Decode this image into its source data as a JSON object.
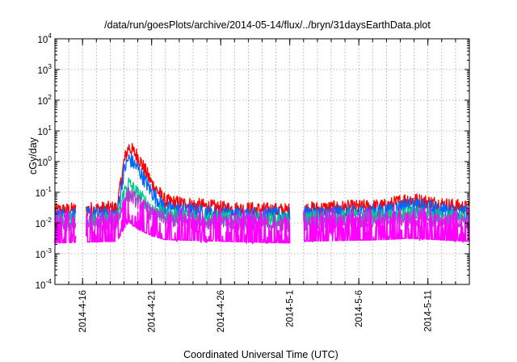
{
  "chart_data": {
    "type": "line",
    "title": "/data/run/goesPlots/archive/2014-05-14/flux/../bryn/31daysEarthData.plot",
    "xlabel": "Coordinated Universal Time (UTC)",
    "ylabel": "cGy/day",
    "yscale": "log",
    "ylim": [
      0.0001,
      10000
    ],
    "y_ticks": [
      {
        "value": 0.0001,
        "base": "10",
        "exp": "-4"
      },
      {
        "value": 0.001,
        "base": "10",
        "exp": "-3"
      },
      {
        "value": 0.01,
        "base": "10",
        "exp": "-2"
      },
      {
        "value": 0.1,
        "base": "10",
        "exp": "-1"
      },
      {
        "value": 1,
        "base": "10",
        "exp": "0"
      },
      {
        "value": 10,
        "base": "10",
        "exp": "1"
      },
      {
        "value": 100,
        "base": "10",
        "exp": "2"
      },
      {
        "value": 1000,
        "base": "10",
        "exp": "3"
      },
      {
        "value": 10000,
        "base": "10",
        "exp": "4"
      }
    ],
    "xlim": [
      "2014-04-14",
      "2014-05-14"
    ],
    "x_ticks": [
      "2014-4-16",
      "2014-4-21",
      "2014-4-26",
      "2014-5-1",
      "2014-5-6",
      "2014-5-11"
    ],
    "grid": true,
    "data_gaps": [
      [
        "2014-04-15T12:00",
        "2014-04-16T06:00"
      ],
      [
        "2014-05-01T00:00",
        "2014-05-02T00:00"
      ]
    ],
    "series": [
      {
        "color": "#ff0000",
        "x": [
          "2014-04-14",
          "2014-04-18T12:00",
          "2014-04-19T00:00",
          "2014-04-19T08:00",
          "2014-04-20T00:00",
          "2014-04-21T00:00",
          "2014-04-22T00:00",
          "2014-04-26",
          "2014-05-01",
          "2014-05-02",
          "2014-05-08",
          "2014-05-09T12:00",
          "2014-05-14"
        ],
        "y": [
          0.025,
          0.03,
          1.0,
          3.0,
          1.5,
          0.2,
          0.05,
          0.03,
          0.025,
          0.028,
          0.035,
          0.06,
          0.03
        ]
      },
      {
        "color": "#0066ff",
        "x": [
          "2014-04-14",
          "2014-04-18T12:00",
          "2014-04-19T00:00",
          "2014-04-19T08:00",
          "2014-04-20T00:00",
          "2014-04-21T00:00",
          "2014-04-22T00:00",
          "2014-04-26",
          "2014-05-01",
          "2014-05-02",
          "2014-05-08",
          "2014-05-09T12:00",
          "2014-05-14"
        ],
        "y": [
          0.018,
          0.02,
          0.5,
          1.3,
          0.6,
          0.1,
          0.03,
          0.02,
          0.018,
          0.02,
          0.025,
          0.04,
          0.02
        ]
      },
      {
        "color": "#00c88c",
        "x": [
          "2014-04-14",
          "2014-04-18T12:00",
          "2014-04-19T00:00",
          "2014-04-19T08:00",
          "2014-04-20T00:00",
          "2014-04-21T00:00",
          "2014-04-22T00:00",
          "2014-04-26",
          "2014-05-01",
          "2014-05-02",
          "2014-05-08",
          "2014-05-09T12:00",
          "2014-05-14"
        ],
        "y": [
          0.012,
          0.014,
          0.1,
          0.2,
          0.09,
          0.03,
          0.018,
          0.014,
          0.012,
          0.014,
          0.016,
          0.02,
          0.014
        ]
      },
      {
        "color": "#aa44cc",
        "x": [
          "2014-04-14",
          "2014-04-18T12:00",
          "2014-04-19T00:00",
          "2014-04-19T08:00",
          "2014-04-20T00:00",
          "2014-04-21T00:00",
          "2014-04-22T00:00",
          "2014-04-26",
          "2014-05-01",
          "2014-05-02",
          "2014-05-08",
          "2014-05-09T12:00",
          "2014-05-14"
        ],
        "y": [
          0.009,
          0.01,
          0.05,
          0.09,
          0.05,
          0.02,
          0.013,
          0.01,
          0.009,
          0.01,
          0.012,
          0.014,
          0.01
        ]
      },
      {
        "color": "#ff00ff",
        "x": [
          "2014-04-14",
          "2014-04-18T12:00",
          "2014-04-19T00:00",
          "2014-04-19T08:00",
          "2014-04-20T00:00",
          "2014-04-21T00:00",
          "2014-04-22T00:00",
          "2014-04-26",
          "2014-05-01",
          "2014-05-02",
          "2014-05-08",
          "2014-05-09T12:00",
          "2014-05-14"
        ],
        "y": [
          0.007,
          0.008,
          0.02,
          0.035,
          0.02,
          0.012,
          0.009,
          0.008,
          0.007,
          0.008,
          0.009,
          0.01,
          0.008
        ]
      }
    ]
  }
}
